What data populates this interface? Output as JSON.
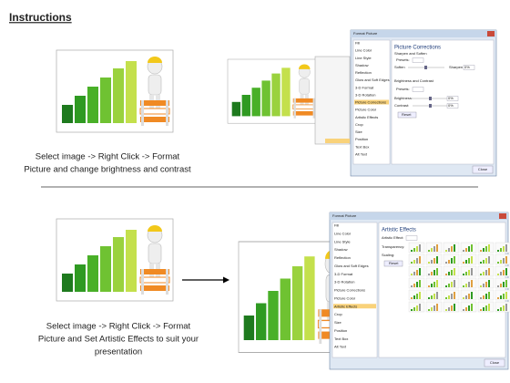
{
  "header": {
    "title": "Instructions"
  },
  "steps": [
    {
      "caption": [
        "Select image -> Right Click -> Format",
        "Picture and change brightness and contrast"
      ]
    },
    {
      "caption": [
        "Select image -> Right Click -> Format",
        "Picture and Set Artistic Effects to suit your",
        "presentation"
      ]
    }
  ],
  "dialogs": [
    {
      "title": "Format Picture",
      "menu": [
        "Fill",
        "Line Color",
        "Line Style",
        "Shadow",
        "Reflection",
        "Glow and Soft Edges",
        "3-D Format",
        "3-D Rotation",
        "Picture Corrections",
        "Picture Color",
        "Artistic Effects",
        "Crop",
        "Size",
        "Position",
        "Text Box",
        "Alt Text"
      ],
      "selected": 8,
      "panel": {
        "heading": "Picture Corrections",
        "section1": "Sharpen and Soften",
        "presets1": "Presets:",
        "soften": "Soften",
        "sharpen": "Sharpen",
        "sharpen_value": "0%",
        "section2": "Brightness and Contrast",
        "presets2": "Presets:",
        "brightness": "Brightness:",
        "brightness_value": "0%",
        "contrast": "Contrast:",
        "contrast_value": "0%",
        "reset": "Reset"
      },
      "close": "Close"
    },
    {
      "title": "Format Picture",
      "menu": [
        "Fill",
        "Line Color",
        "Line Style",
        "Shadow",
        "Reflection",
        "Glow and Soft Edges",
        "3-D Format",
        "3-D Rotation",
        "Picture Corrections",
        "Picture Color",
        "Artistic Effects",
        "Crop",
        "Size",
        "Position",
        "Text Box",
        "Alt Text"
      ],
      "selected": 10,
      "panel": {
        "heading": "Artistic Effects",
        "effect": "Artistic Effect:",
        "transparency": "Transparency:",
        "scaling": "Scaling:",
        "reset": "Reset"
      },
      "close": "Close"
    }
  ]
}
